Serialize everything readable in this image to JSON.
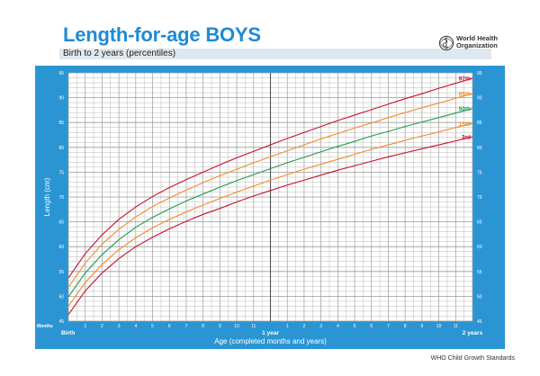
{
  "title": "Length-for-age BOYS",
  "subtitle": "Birth to 2 years (percentiles)",
  "organization": {
    "name_line1": "World Health",
    "name_line2": "Organization",
    "logo_icon": "who-emblem-icon"
  },
  "footer": "WHO Child Growth Standards",
  "colors": {
    "frame": "#2b95d4",
    "grid": "#9b9b9b",
    "p3": "#c8102e",
    "p15": "#f28c28",
    "p50": "#1f9a50",
    "p85": "#f28c28",
    "p97": "#c8102e"
  },
  "chart_data": {
    "type": "line",
    "title": "Length-for-age BOYS",
    "subtitle": "Birth to 2 years (percentiles)",
    "xlabel": "Age (completed months and years)",
    "ylabel": "Length (cm)",
    "x_unit_label": "Months",
    "xlim": [
      0,
      24
    ],
    "ylim": [
      45,
      95
    ],
    "y_ticks": [
      45,
      50,
      55,
      60,
      65,
      70,
      75,
      80,
      85,
      90,
      95
    ],
    "x_ticks": [
      {
        "value": 0,
        "label": "Birth",
        "major": true
      },
      {
        "value": 1,
        "label": "1"
      },
      {
        "value": 2,
        "label": "2"
      },
      {
        "value": 3,
        "label": "3"
      },
      {
        "value": 4,
        "label": "4"
      },
      {
        "value": 5,
        "label": "5"
      },
      {
        "value": 6,
        "label": "6"
      },
      {
        "value": 7,
        "label": "7"
      },
      {
        "value": 8,
        "label": "8"
      },
      {
        "value": 9,
        "label": "9"
      },
      {
        "value": 10,
        "label": "10"
      },
      {
        "value": 11,
        "label": "11"
      },
      {
        "value": 12,
        "label": "1 year",
        "major": true
      },
      {
        "value": 13,
        "label": "1"
      },
      {
        "value": 14,
        "label": "2"
      },
      {
        "value": 15,
        "label": "3"
      },
      {
        "value": 16,
        "label": "4"
      },
      {
        "value": 17,
        "label": "5"
      },
      {
        "value": 18,
        "label": "6"
      },
      {
        "value": 19,
        "label": "7"
      },
      {
        "value": 20,
        "label": "8"
      },
      {
        "value": 21,
        "label": "9"
      },
      {
        "value": 22,
        "label": "10"
      },
      {
        "value": 23,
        "label": "11"
      },
      {
        "value": 24,
        "label": "2 years",
        "major": true
      }
    ],
    "grid": true,
    "x": [
      0,
      1,
      2,
      3,
      4,
      5,
      6,
      7,
      8,
      9,
      10,
      11,
      12,
      13,
      14,
      15,
      16,
      17,
      18,
      19,
      20,
      21,
      22,
      23,
      24
    ],
    "series": [
      {
        "name": "97th",
        "color_key": "p97",
        "values": [
          53.7,
          58.6,
          62.4,
          65.5,
          68.0,
          70.1,
          71.9,
          73.5,
          75.0,
          76.5,
          77.9,
          79.2,
          80.5,
          81.8,
          83.0,
          84.2,
          85.4,
          86.5,
          87.6,
          88.7,
          89.8,
          90.8,
          91.9,
          92.9,
          93.9
        ]
      },
      {
        "name": "85th",
        "color_key": "p85",
        "values": [
          51.8,
          56.7,
          60.5,
          63.5,
          66.0,
          68.1,
          69.8,
          71.4,
          72.9,
          74.3,
          75.6,
          76.9,
          78.1,
          79.3,
          80.5,
          81.7,
          82.8,
          83.9,
          84.9,
          86.0,
          87.0,
          88.0,
          88.9,
          89.9,
          90.8
        ]
      },
      {
        "name": "50th",
        "color_key": "p50",
        "values": [
          49.9,
          54.7,
          58.4,
          61.4,
          63.9,
          65.9,
          67.6,
          69.2,
          70.6,
          72.0,
          73.3,
          74.5,
          75.7,
          76.9,
          78.0,
          79.1,
          80.2,
          81.2,
          82.3,
          83.2,
          84.2,
          85.1,
          86.0,
          86.9,
          87.8
        ]
      },
      {
        "name": "15th",
        "color_key": "p15",
        "values": [
          48.0,
          52.8,
          56.4,
          59.4,
          61.8,
          63.8,
          65.5,
          67.0,
          68.4,
          69.7,
          71.0,
          72.2,
          73.4,
          74.5,
          75.6,
          76.6,
          77.6,
          78.6,
          79.6,
          80.5,
          81.4,
          82.3,
          83.1,
          84.0,
          84.8
        ]
      },
      {
        "name": "3rd",
        "color_key": "p3",
        "values": [
          46.3,
          51.1,
          54.7,
          57.6,
          60.0,
          61.9,
          63.6,
          65.1,
          66.5,
          67.7,
          69.0,
          70.2,
          71.3,
          72.4,
          73.4,
          74.4,
          75.4,
          76.3,
          77.2,
          78.1,
          78.9,
          79.7,
          80.5,
          81.3,
          82.1
        ]
      }
    ]
  }
}
